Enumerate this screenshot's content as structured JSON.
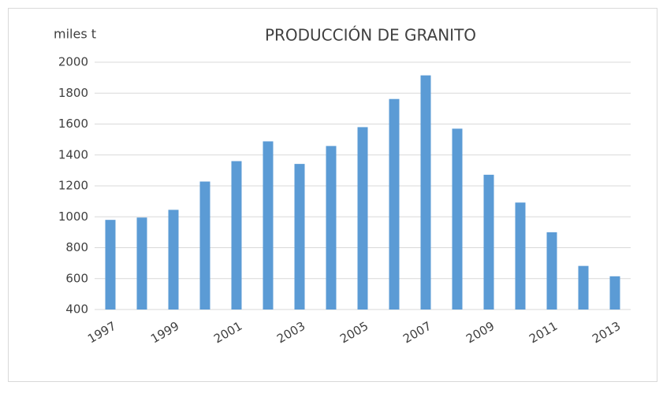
{
  "chart_data": {
    "type": "bar",
    "title": "PRODUCCIÓN DE GRANITO",
    "y_label": "miles t",
    "categories": [
      "1997",
      null,
      "1999",
      null,
      "2001",
      null,
      "2003",
      null,
      "2005",
      null,
      "2007",
      null,
      "2009",
      null,
      "2011",
      null,
      "2013"
    ],
    "values": [
      980,
      995,
      1045,
      1228,
      1360,
      1488,
      1342,
      1458,
      1580,
      1762,
      1915,
      1570,
      1272,
      1092,
      900,
      682,
      615
    ],
    "color": "#5b9bd5",
    "ylim": [
      400,
      2000
    ],
    "yticks": [
      400,
      600,
      800,
      1000,
      1200,
      1400,
      1600,
      1800,
      2000
    ],
    "grid": true
  }
}
